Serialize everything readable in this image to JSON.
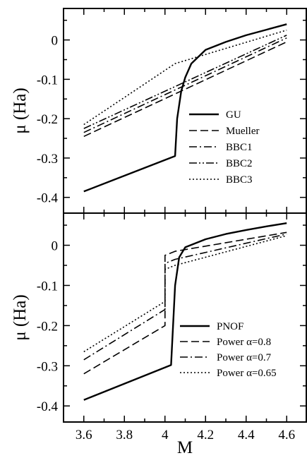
{
  "chart_data": [
    {
      "type": "line",
      "ylabel": "μ (Ha)",
      "xlim": [
        3.5,
        4.7
      ],
      "ylim": [
        -0.44,
        0.08
      ],
      "xticks": [
        3.6,
        3.8,
        4,
        4.2,
        4.4,
        4.6
      ],
      "yticks": [
        0,
        -0.1,
        -0.2,
        -0.3,
        -0.4
      ],
      "ytick_labels": [
        "0",
        "-0.1",
        "-0.2",
        "-0.3",
        "-0.4"
      ],
      "legend_position": "lower-right",
      "series": [
        {
          "name": "GU",
          "style": "solid",
          "x": [
            3.6,
            4.05,
            4.06,
            4.08,
            4.1,
            4.13,
            4.2,
            4.3,
            4.4,
            4.5,
            4.6
          ],
          "y": [
            -0.385,
            -0.295,
            -0.2,
            -0.13,
            -0.095,
            -0.06,
            -0.025,
            -0.005,
            0.012,
            0.026,
            0.04
          ]
        },
        {
          "name": "Mueller",
          "style": "dashed",
          "x": [
            3.6,
            4.6
          ],
          "y": [
            -0.245,
            -0.005
          ]
        },
        {
          "name": "BBC1",
          "style": "dashdot",
          "x": [
            3.6,
            4.6
          ],
          "y": [
            -0.235,
            0.005
          ]
        },
        {
          "name": "BBC2",
          "style": "dashdotdot",
          "x": [
            3.6,
            4.6
          ],
          "y": [
            -0.225,
            0.012
          ]
        },
        {
          "name": "BBC3",
          "style": "dotted",
          "x": [
            3.6,
            4.05,
            4.6
          ],
          "y": [
            -0.215,
            -0.06,
            0.025
          ]
        }
      ]
    },
    {
      "type": "line",
      "xlabel": "M",
      "ylabel": "μ (Ha)",
      "xlim": [
        3.5,
        4.7
      ],
      "ylim": [
        -0.44,
        0.08
      ],
      "xticks": [
        3.6,
        3.8,
        4,
        4.2,
        4.4,
        4.6
      ],
      "xtick_labels": [
        "3.6",
        "3.8",
        "4",
        "4.2",
        "4.4",
        "4.6"
      ],
      "yticks": [
        0,
        -0.1,
        -0.2,
        -0.3,
        -0.4
      ],
      "ytick_labels": [
        "0",
        "-0.1",
        "-0.2",
        "-0.3",
        "-0.4"
      ],
      "legend_position": "lower-right",
      "series": [
        {
          "name": "PNOF",
          "style": "solid",
          "x": [
            3.6,
            4.03,
            4.05,
            4.07,
            4.1,
            4.2,
            4.3,
            4.4,
            4.5,
            4.6
          ],
          "y": [
            -0.385,
            -0.298,
            -0.1,
            -0.03,
            -0.005,
            0.015,
            0.028,
            0.038,
            0.047,
            0.055
          ]
        },
        {
          "name": "Power α=0.8",
          "style": "dashed",
          "x": [
            3.6,
            4.0,
            4.0,
            4.05,
            4.6
          ],
          "y": [
            -0.32,
            -0.2,
            -0.025,
            -0.015,
            0.032
          ]
        },
        {
          "name": "Power α=0.7",
          "style": "dashdot",
          "x": [
            3.6,
            4.0,
            4.0,
            4.05,
            4.6
          ],
          "y": [
            -0.285,
            -0.16,
            -0.045,
            -0.035,
            0.028
          ]
        },
        {
          "name": "Power α=0.65",
          "style": "dotted",
          "x": [
            3.6,
            4.0,
            4.0,
            4.05,
            4.6
          ],
          "y": [
            -0.265,
            -0.14,
            -0.06,
            -0.05,
            0.024
          ]
        }
      ]
    }
  ]
}
